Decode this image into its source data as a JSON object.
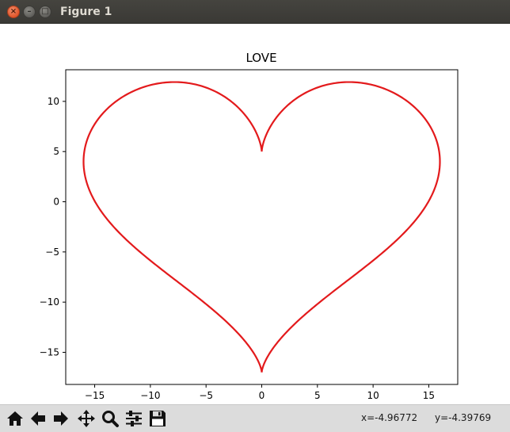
{
  "window": {
    "title": "Figure 1",
    "close_glyph": "×",
    "minimize_glyph": "–",
    "maximize_glyph": "□"
  },
  "chart_data": {
    "type": "line",
    "title": "LOVE",
    "xlabel": "",
    "ylabel": "",
    "xlim": [
      -17.6,
      17.6
    ],
    "ylim": [
      -18.2,
      13.15
    ],
    "xticks": [
      -15,
      -10,
      -5,
      0,
      5,
      10,
      15
    ],
    "yticks": [
      -15,
      -10,
      -5,
      0,
      5,
      10
    ],
    "xtick_labels": [
      "−15",
      "−10",
      "−5",
      "0",
      "5",
      "10",
      "15"
    ],
    "ytick_labels": [
      "−15",
      "−10",
      "−5",
      "0",
      "5",
      "10"
    ],
    "grid": false,
    "legend": null,
    "series": [
      {
        "color": "#e31a1c",
        "parametric": {
          "t_range": [
            0,
            6.283185307179586
          ],
          "x": "16*sin(t)^3",
          "y": "13*cos(t) - 5*cos(2t) - 2*cos(3t) - cos(4t)"
        },
        "sample_points": [
          {
            "x": 0,
            "y": 5
          },
          {
            "x": 16,
            "y": 4
          },
          {
            "x": 0,
            "y": -17
          },
          {
            "x": -16,
            "y": 4
          },
          {
            "x": 7.9,
            "y": 11.9
          },
          {
            "x": -7.9,
            "y": 11.9
          }
        ]
      }
    ]
  },
  "toolbar": {
    "buttons": [
      {
        "name": "home-button",
        "icon": "home-icon"
      },
      {
        "name": "back-button",
        "icon": "arrow-left-icon"
      },
      {
        "name": "forward-button",
        "icon": "arrow-right-icon"
      },
      {
        "name": "pan-button",
        "icon": "move-icon"
      },
      {
        "name": "zoom-button",
        "icon": "magnifier-icon"
      },
      {
        "name": "subplots-button",
        "icon": "sliders-icon"
      },
      {
        "name": "save-button",
        "icon": "floppy-disk-icon"
      }
    ],
    "x_readout": "x=-4.96772",
    "y_readout": "y=-4.39769"
  }
}
